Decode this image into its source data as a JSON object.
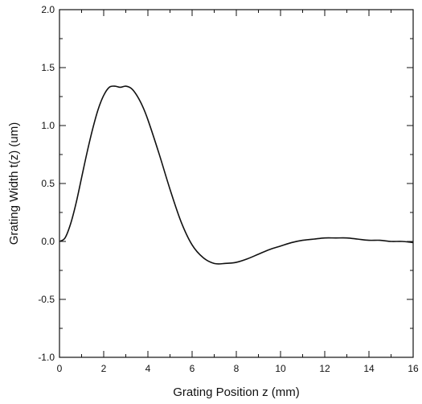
{
  "chart_data": {
    "type": "line",
    "title": "",
    "xlabel": "Grating Position  z  (mm)",
    "ylabel": "Grating  Width  t(z)  (um)",
    "xlim": [
      0,
      16
    ],
    "ylim": [
      -1.0,
      2.0
    ],
    "x_ticks": [
      0,
      2,
      4,
      6,
      8,
      10,
      12,
      14,
      16
    ],
    "x_tick_labels": [
      "0",
      "2",
      "4",
      "6",
      "8",
      "10",
      "12",
      "14",
      "16"
    ],
    "y_ticks": [
      -1.0,
      -0.5,
      0.0,
      0.5,
      1.0,
      1.5,
      2.0
    ],
    "y_tick_labels": [
      "-1.0",
      "-0.5",
      "0.0",
      "0.5",
      "1.0",
      "1.5",
      "2.0"
    ],
    "grid": false,
    "legend": "none",
    "series": [
      {
        "color": "#111111",
        "x": [
          0,
          0.25,
          0.5,
          0.75,
          1.0,
          1.25,
          1.5,
          1.75,
          2.0,
          2.25,
          2.5,
          2.75,
          3.0,
          3.25,
          3.5,
          3.75,
          4.0,
          4.5,
          5.0,
          5.5,
          6.0,
          6.5,
          7.0,
          7.5,
          8.0,
          8.5,
          9.0,
          9.5,
          10.0,
          10.5,
          11.0,
          11.5,
          12.0,
          12.5,
          13.0,
          13.5,
          14.0,
          14.5,
          15.0,
          15.5,
          16.0
        ],
        "y": [
          0.0,
          0.03,
          0.15,
          0.33,
          0.55,
          0.77,
          0.97,
          1.14,
          1.26,
          1.33,
          1.34,
          1.33,
          1.34,
          1.32,
          1.26,
          1.17,
          1.05,
          0.76,
          0.45,
          0.17,
          -0.03,
          -0.14,
          -0.19,
          -0.19,
          -0.18,
          -0.15,
          -0.11,
          -0.07,
          -0.04,
          -0.01,
          0.01,
          0.02,
          0.03,
          0.03,
          0.03,
          0.02,
          0.01,
          0.01,
          0.0,
          0.0,
          -0.01
        ]
      }
    ]
  }
}
